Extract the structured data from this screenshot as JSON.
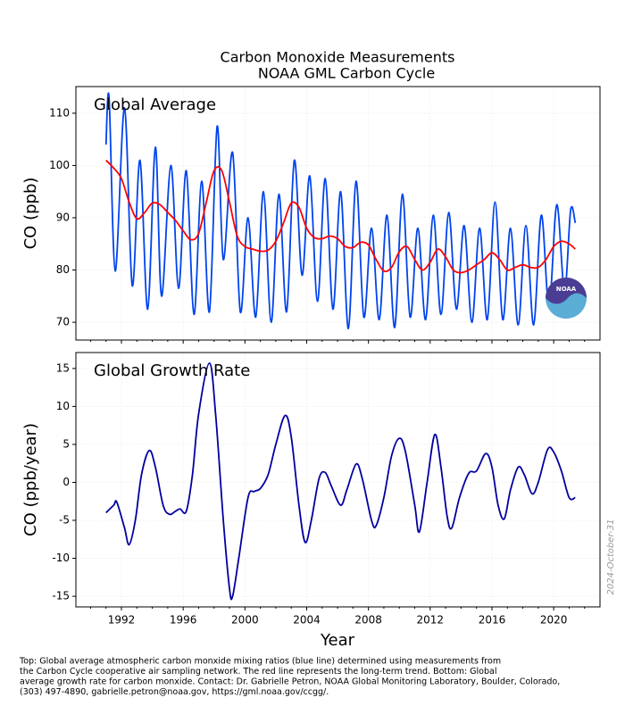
{
  "chart_data": [
    {
      "type": "line",
      "title": "Carbon Monoxide Measurements",
      "subtitle": "NOAA GML Carbon Cycle",
      "annotation": "Global Average",
      "ylabel": "CO (ppb)",
      "xlim": [
        1989.05,
        2023.0
      ],
      "ylim": [
        66.6,
        115.1
      ],
      "yticks": [
        70,
        80,
        90,
        100,
        110
      ],
      "grid": true,
      "smooth": true,
      "series": [
        {
          "name": "monthly",
          "color": "#0044ee",
          "x": [
            1991.0,
            1991.2,
            1991.6,
            1992.2,
            1992.7,
            1993.2,
            1993.7,
            1994.2,
            1994.6,
            1995.2,
            1995.7,
            1996.2,
            1996.7,
            1997.2,
            1997.7,
            1998.2,
            1998.6,
            1999.2,
            1999.7,
            2000.2,
            2000.7,
            2001.2,
            2001.7,
            2002.2,
            2002.7,
            2003.2,
            2003.7,
            2004.2,
            2004.7,
            2005.2,
            2005.7,
            2006.2,
            2006.7,
            2007.2,
            2007.7,
            2008.2,
            2008.7,
            2009.2,
            2009.7,
            2010.2,
            2010.7,
            2011.2,
            2011.7,
            2012.2,
            2012.7,
            2013.2,
            2013.7,
            2014.2,
            2014.7,
            2015.2,
            2015.7,
            2016.2,
            2016.7,
            2017.2,
            2017.7,
            2018.2,
            2018.7,
            2019.2,
            2019.7,
            2020.2,
            2020.7,
            2021.1,
            2021.4
          ],
          "values": [
            104,
            113,
            79.8,
            111,
            77,
            101,
            72.5,
            103.5,
            75,
            100,
            76.5,
            99,
            71.5,
            97,
            72,
            107.5,
            82,
            102.5,
            72,
            90,
            71,
            95,
            70,
            94.5,
            72,
            101,
            79,
            98,
            74,
            97.5,
            72.5,
            95,
            68.8,
            97,
            71,
            88,
            70.5,
            90.5,
            69,
            94.5,
            71,
            88,
            70.5,
            90.5,
            71.5,
            91,
            72.5,
            88.5,
            70,
            88,
            70.5,
            93,
            70.5,
            88,
            69.5,
            88.5,
            69.5,
            90.5,
            73,
            92.5,
            76,
            91.5,
            89
          ]
        },
        {
          "name": "trend",
          "color": "#ff0000",
          "x": [
            1991.0,
            1991.5,
            1992.0,
            1992.5,
            1993.0,
            1993.5,
            1994.0,
            1994.5,
            1995.0,
            1995.5,
            1996.0,
            1996.5,
            1997.0,
            1997.5,
            1998.0,
            1998.5,
            1999.0,
            1999.5,
            2000.0,
            2000.5,
            2001.0,
            2001.5,
            2002.0,
            2002.5,
            2003.0,
            2003.5,
            2004.0,
            2004.5,
            2005.0,
            2005.5,
            2006.0,
            2006.5,
            2007.0,
            2007.5,
            2008.0,
            2008.5,
            2009.0,
            2009.5,
            2010.0,
            2010.5,
            2011.0,
            2011.5,
            2012.0,
            2012.5,
            2013.0,
            2013.5,
            2014.0,
            2014.5,
            2015.0,
            2015.5,
            2016.0,
            2016.5,
            2017.0,
            2017.5,
            2018.0,
            2018.5,
            2019.0,
            2019.5,
            2020.0,
            2020.5,
            2021.0,
            2021.4
          ],
          "values": [
            101,
            99.5,
            97.5,
            93,
            89.8,
            91,
            92.8,
            92.5,
            91,
            89.5,
            87.5,
            85.8,
            87,
            93,
            99,
            99,
            93,
            86.5,
            84.5,
            84,
            83.6,
            83.8,
            85.5,
            89,
            92.8,
            92,
            88,
            86.2,
            86,
            86.5,
            86,
            84.5,
            84.3,
            85.3,
            84.8,
            82,
            79.8,
            80.5,
            83.5,
            84.5,
            82,
            80,
            81.5,
            84,
            82.5,
            80,
            79.5,
            80,
            81,
            82,
            83.3,
            82,
            80,
            80.5,
            81,
            80.5,
            80.5,
            82,
            84.5,
            85.5,
            85,
            84
          ]
        }
      ],
      "logo_text": "NOAA"
    },
    {
      "type": "line",
      "annotation": "Global Growth Rate",
      "ylabel": "CO (ppb/year)",
      "xlabel": "Year",
      "xlim": [
        1989.05,
        2023.0
      ],
      "ylim": [
        -16.4,
        17.1
      ],
      "xticks": [
        1992,
        1996,
        2000,
        2004,
        2008,
        2012,
        2016,
        2020
      ],
      "xminorticks": [
        1990,
        1991,
        1993,
        1994,
        1995,
        1997,
        1998,
        1999,
        2001,
        2002,
        2003,
        2005,
        2006,
        2007,
        2009,
        2010,
        2011,
        2013,
        2014,
        2015,
        2017,
        2018,
        2019,
        2021,
        2022
      ],
      "yticks": [
        -15,
        -10,
        -5,
        0,
        5,
        10,
        15
      ],
      "grid": true,
      "smooth": true,
      "series": [
        {
          "name": "growth rate",
          "color": "#0000a0",
          "x": [
            1991.0,
            1991.5,
            1991.7,
            1992.2,
            1992.5,
            1992.9,
            1993.3,
            1993.8,
            1994.2,
            1994.7,
            1995.1,
            1995.5,
            1995.8,
            1996.2,
            1996.6,
            1997.0,
            1997.7,
            1998.1,
            1998.6,
            1999.0,
            1999.2,
            1999.6,
            2000.2,
            2000.6,
            2001.0,
            2001.5,
            2002.0,
            2002.6,
            2003.0,
            2003.5,
            2003.9,
            2004.3,
            2004.8,
            2005.2,
            2005.6,
            2006.2,
            2006.6,
            2007.2,
            2007.6,
            2008.2,
            2008.5,
            2009.0,
            2009.5,
            2010.0,
            2010.4,
            2011.0,
            2011.3,
            2011.8,
            2012.3,
            2012.7,
            2013.1,
            2013.4,
            2013.9,
            2014.5,
            2015.0,
            2015.6,
            2016.0,
            2016.4,
            2016.8,
            2017.2,
            2017.7,
            2018.1,
            2018.6,
            2019.0,
            2019.6,
            2020.0,
            2020.5,
            2021.0,
            2021.4
          ],
          "values": [
            -4,
            -3,
            -2.6,
            -6,
            -8.2,
            -5,
            1,
            4.2,
            2,
            -3,
            -4.2,
            -3.8,
            -3.5,
            -3.8,
            1,
            9,
            15.7,
            9,
            -5,
            -14,
            -15,
            -10,
            -2,
            -1.2,
            -0.8,
            1,
            5,
            8.8,
            6,
            -3,
            -7.9,
            -5,
            0.5,
            1.3,
            -0.5,
            -3,
            -1,
            2.4,
            0.5,
            -5,
            -5.7,
            -2,
            3.5,
            5.8,
            4,
            -3,
            -6.5,
            0,
            6.3,
            2,
            -4.5,
            -6,
            -2,
            1.2,
            1.5,
            3.8,
            2,
            -3,
            -4.8,
            -1,
            2,
            1,
            -1.5,
            0,
            4.3,
            4,
            1.5,
            -2,
            -2
          ]
        }
      ]
    }
  ],
  "footnote": [
    "Top:  Global average atmospheric carbon monxide mixing ratios (blue line) determined using measurements from",
    "the Carbon Cycle cooperative air sampling network.  The red line represents the long-term trend.  Bottom:  Global",
    "average growth rate for carbon monxide.  Contact:  Dr. Gabrielle Petron, NOAA Global Monitoring Laboratory, Boulder, Colorado,",
    "(303) 497-4890, gabrielle.petron@noaa.gov, https://gml.noaa.gov/ccgg/."
  ],
  "date_stamp": "2024-October-31"
}
